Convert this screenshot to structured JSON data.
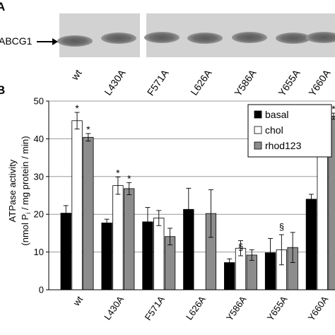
{
  "panel_a": {
    "letter": "A",
    "band_label": "ABCG1",
    "lanes": [
      "wt",
      "L430A",
      "F571A",
      "L626A",
      "Y586A",
      "Y655A",
      "Y660A"
    ]
  },
  "panel_b": {
    "letter": "B"
  },
  "colors": {
    "basal": "#000000",
    "chol": "#ffffff",
    "rhod123": "#8c8c8c"
  },
  "chart_data": {
    "type": "bar",
    "ylabel_line1": "ATPase activity",
    "ylabel_line2_pre": "(nmol P",
    "ylabel_line2_sub": "i",
    "ylabel_line2_post": " / mg protein / min)",
    "ylim": [
      0,
      50
    ],
    "yticks": [
      0,
      10,
      20,
      30,
      40,
      50
    ],
    "grid": true,
    "legend_position": "top-right",
    "categories": [
      "wt",
      "L430A",
      "F571A",
      "L626A",
      "Y586A",
      "Y655A",
      "Y660A"
    ],
    "series": [
      {
        "name": "basal",
        "values": [
          20.3,
          17.7,
          18.0,
          21.3,
          7.2,
          9.8,
          24.0
        ],
        "errors": [
          2.0,
          1.0,
          3.8,
          5.6,
          1.0,
          3.8,
          1.3
        ]
      },
      {
        "name": "chol",
        "values": [
          44.8,
          27.6,
          19.0,
          null,
          11.0,
          10.6,
          42.5
        ],
        "errors": [
          2.2,
          2.3,
          2.0,
          null,
          2.0,
          4.0,
          1.8
        ]
      },
      {
        "name": "rhod123",
        "values": [
          40.4,
          26.8,
          14.1,
          20.2,
          9.2,
          11.2,
          46.0
        ],
        "errors": [
          1.0,
          1.6,
          2.2,
          6.3,
          1.4,
          4.0,
          0.8
        ]
      }
    ],
    "annotations": [
      {
        "category": "wt",
        "series": "chol",
        "text": "*"
      },
      {
        "category": "wt",
        "series": "rhod123",
        "text": "*"
      },
      {
        "category": "L430A",
        "series": "chol",
        "text": "*"
      },
      {
        "category": "L430A",
        "series": "rhod123",
        "text": "*"
      },
      {
        "category": "Y586A",
        "series": "basal",
        "text": "§"
      },
      {
        "category": "Y655A",
        "series": "basal",
        "text": "§"
      },
      {
        "category": "Y660A",
        "series": "chol",
        "text": "*"
      },
      {
        "category": "Y660A",
        "series": "rhod123",
        "text": "*"
      }
    ]
  }
}
